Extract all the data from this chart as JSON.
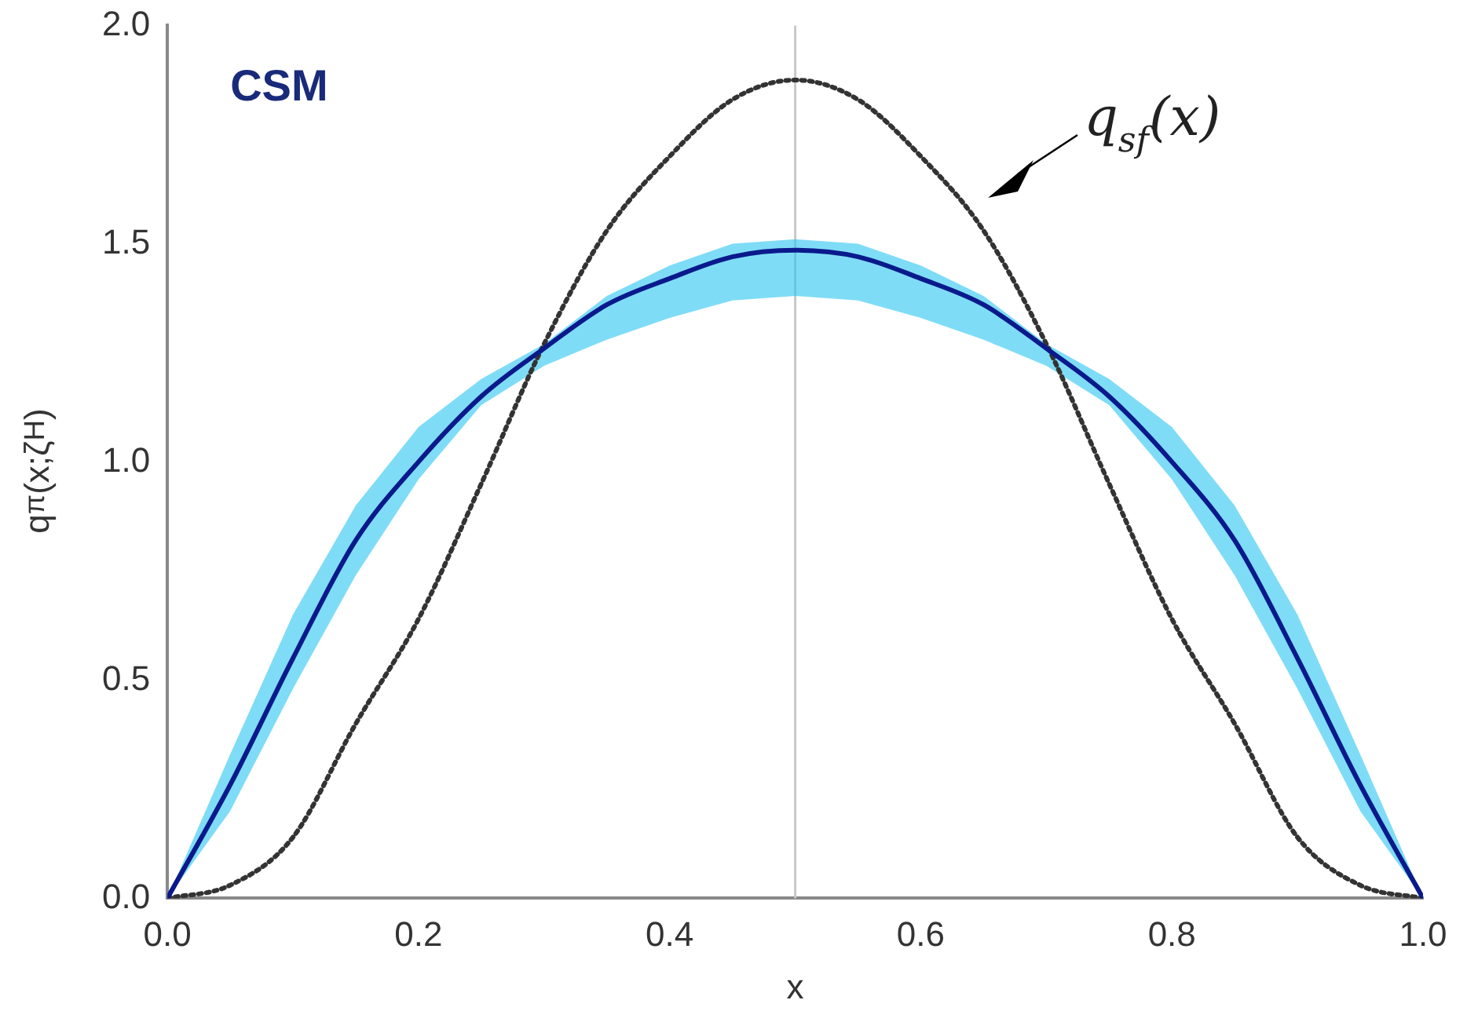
{
  "chart_data": {
    "type": "line",
    "xlabel": "x",
    "ylabel": "q$^{π}$(x;ζ$_{H}$)",
    "x": [
      0,
      0.05,
      0.1,
      0.15,
      0.2,
      0.25,
      0.3,
      0.35,
      0.4,
      0.45,
      0.5,
      0.55,
      0.6,
      0.65,
      0.7,
      0.75,
      0.8,
      0.85,
      0.9,
      0.95,
      1
    ],
    "series": [
      {
        "color": "#0a1a8c",
        "values": [
          0,
          0.26,
          0.55,
          0.82,
          1.0,
          1.15,
          1.26,
          1.36,
          1.42,
          1.47,
          1.485,
          1.47,
          1.42,
          1.36,
          1.26,
          1.15,
          1.0,
          0.82,
          0.55,
          0.26,
          0
        ],
        "lower": [
          0,
          0.2,
          0.48,
          0.74,
          0.96,
          1.13,
          1.22,
          1.28,
          1.33,
          1.37,
          1.38,
          1.37,
          1.33,
          1.28,
          1.22,
          1.13,
          0.96,
          0.74,
          0.48,
          0.2,
          0
        ],
        "upper": [
          0,
          0.33,
          0.65,
          0.9,
          1.08,
          1.19,
          1.27,
          1.38,
          1.45,
          1.5,
          1.51,
          1.5,
          1.45,
          1.38,
          1.27,
          1.19,
          1.08,
          0.9,
          0.65,
          0.33,
          0
        ]
      },
      {
        "color": "#333333",
        "line_style": "dotted",
        "values": [
          0,
          0.03,
          0.14,
          0.4,
          0.64,
          0.95,
          1.27,
          1.53,
          1.7,
          1.83,
          1.875,
          1.83,
          1.7,
          1.53,
          1.27,
          0.95,
          0.64,
          0.4,
          0.14,
          0.03,
          0
        ]
      }
    ],
    "xlim": [
      0,
      1
    ],
    "xticks": [
      {
        "value": 0,
        "label": "0.0"
      },
      0.2,
      0.4,
      0.6,
      0.8,
      {
        "value": 1,
        "label": "1.0"
      }
    ],
    "ylim": [
      0,
      2
    ],
    "yticks": [
      {
        "value": 0,
        "label": "0.0"
      },
      0.5,
      {
        "value": 1,
        "label": "1.0"
      },
      1.5,
      {
        "value": 2,
        "label": "2.0"
      }
    ],
    "ref_lines": [
      {
        "axis": "x",
        "value": 0.5,
        "color": "#c8c8c8"
      }
    ],
    "annotations": [
      "CSM",
      "q$_{sf}$(x)"
    ],
    "grid": false,
    "legend": false,
    "marker": "none"
  }
}
